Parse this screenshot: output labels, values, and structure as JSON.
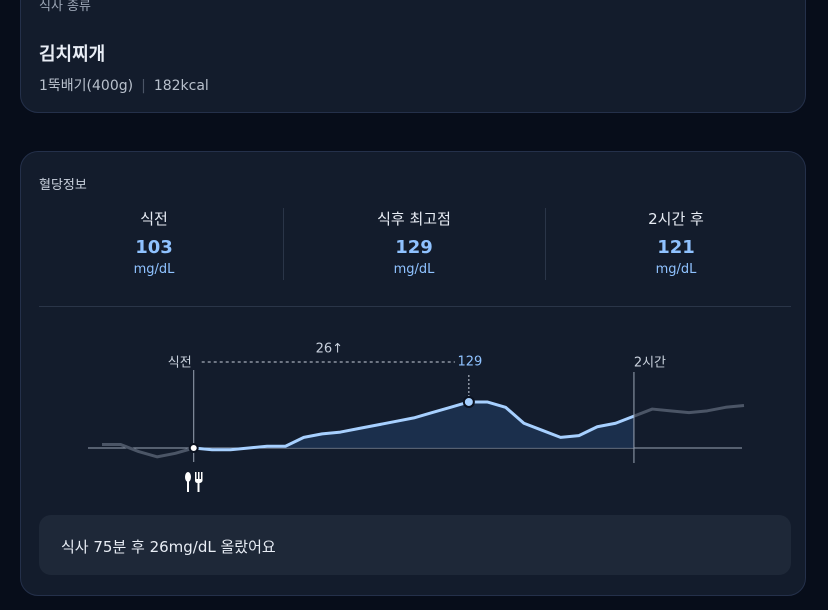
{
  "meal_card": {
    "section_label": "식사 종류",
    "food_name": "김치찌개",
    "serving": "1뚝배기(400g)",
    "calories": "182kcal"
  },
  "glucose_card": {
    "title": "혈당정보",
    "stats": [
      {
        "label": "식전",
        "value": 103,
        "unit": "mg/dL"
      },
      {
        "label": "식후 최고점",
        "value": 129,
        "unit": "mg/dL"
      },
      {
        "label": "2시간 후",
        "value": 121,
        "unit": "mg/dL"
      }
    ],
    "chart_data": {
      "type": "line",
      "meal_label": "식전",
      "rise_label": "26↑",
      "peak_label": "129",
      "two_hour_label": "2시간",
      "x": [
        -25,
        -20,
        -15,
        -10,
        -5,
        0,
        5,
        10,
        15,
        20,
        25,
        30,
        35,
        40,
        45,
        50,
        55,
        60,
        65,
        70,
        75,
        80,
        85,
        90,
        95,
        100,
        105,
        110,
        115,
        120,
        125,
        130,
        135,
        140,
        145,
        150
      ],
      "values": [
        105,
        105,
        101,
        98,
        100,
        103,
        102,
        102,
        103,
        104,
        104,
        109,
        111,
        112,
        114,
        116,
        118,
        120,
        123,
        126,
        129,
        129,
        126,
        117,
        113,
        109,
        110,
        115,
        117,
        121,
        125,
        124,
        123,
        124,
        126,
        127
      ],
      "color": "#a7d0ff",
      "muted_color": "#4b5566"
    },
    "summary": "식사 75분 후 26mg/dL 올랐어요"
  }
}
